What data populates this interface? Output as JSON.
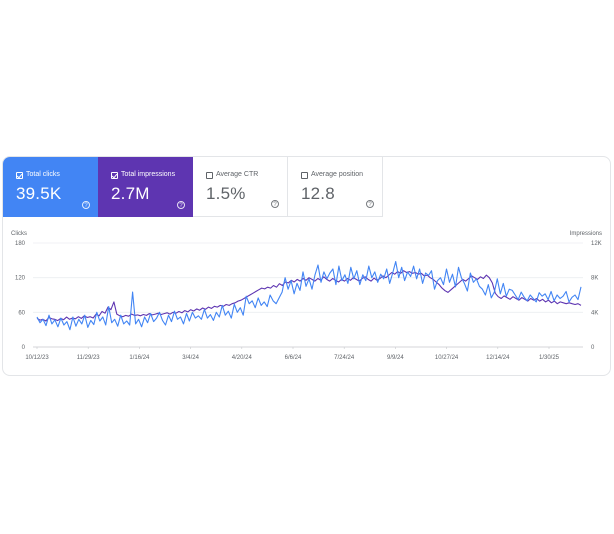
{
  "cards": [
    {
      "label": "Total clicks",
      "value": "39.5K",
      "checked": true,
      "color": "#4285f4"
    },
    {
      "label": "Total impressions",
      "value": "2.7M",
      "checked": true,
      "color": "#5e35b1"
    },
    {
      "label": "Average CTR",
      "value": "1.5%",
      "checked": false
    },
    {
      "label": "Average position",
      "value": "12.8",
      "checked": false
    }
  ],
  "help_glyph": "?",
  "chart_data": {
    "type": "line",
    "left_axis_label": "Clicks",
    "right_axis_label": "Impressions",
    "left_ticks": [
      "180",
      "120",
      "60",
      "0"
    ],
    "right_ticks": [
      "12K",
      "8K",
      "4K",
      "0"
    ],
    "x_ticks": [
      "10/12/23",
      "11/29/23",
      "1/16/24",
      "3/4/24",
      "4/20/24",
      "6/6/24",
      "7/24/24",
      "9/9/24",
      "10/27/24",
      "12/14/24",
      "1/30/25"
    ],
    "ylim_left": [
      0,
      180
    ],
    "ylim_right": [
      0,
      12000
    ],
    "series": [
      {
        "name": "Total clicks",
        "color": "#4285f4",
        "values": [
          52,
          42,
          48,
          37,
          55,
          40,
          47,
          35,
          50,
          38,
          44,
          30,
          52,
          36,
          48,
          40,
          55,
          34,
          46,
          39,
          60,
          45,
          52,
          38,
          70,
          42,
          48,
          36,
          55,
          40,
          45,
          38,
          95,
          40,
          48,
          35,
          52,
          42,
          58,
          44,
          50,
          60,
          46,
          38,
          55,
          44,
          62,
          48,
          52,
          40,
          58,
          45,
          60,
          50,
          54,
          48,
          65,
          50,
          56,
          46,
          60,
          52,
          72,
          55,
          62,
          50,
          74,
          60,
          68,
          55,
          88,
          75,
          80,
          68,
          85,
          72,
          78,
          70,
          90,
          80,
          75,
          85,
          95,
          120,
          100,
          115,
          92,
          110,
          98,
          130,
          105,
          118,
          100,
          125,
          142,
          112,
          130,
          118,
          128,
          135,
          108,
          140,
          115,
          125,
          110,
          138,
          118,
          132,
          108,
          125,
          115,
          140,
          120,
          130,
          112,
          126,
          118,
          135,
          110,
          128,
          148,
          120,
          138,
          115,
          130,
          122,
          140,
          118,
          135,
          110,
          128,
          124,
          132,
          100,
          115,
          120,
          108,
          135,
          112,
          126,
          104,
          138,
          120,
          110,
          97,
          128,
          112,
          118,
          105,
          100,
          90,
          108,
          85,
          95,
          118,
          92,
          110,
          88,
          100,
          98,
          90,
          82,
          95,
          86,
          80,
          90,
          84,
          78,
          94,
          88,
          92,
          82,
          96,
          80,
          90,
          84,
          88,
          96,
          78,
          86,
          90,
          82,
          104
        ],
        "note_partial": false
      },
      {
        "name": "Total impressions",
        "color": "#5e35b1",
        "values": [
          3300,
          3100,
          3200,
          3000,
          3400,
          3250,
          3200,
          3050,
          3300,
          3150,
          3450,
          3200,
          3350,
          3250,
          3500,
          3300,
          3600,
          3400,
          3500,
          3350,
          3800,
          3600,
          4100,
          3900,
          4600,
          4300,
          5200,
          3800,
          3600,
          3500,
          3650,
          3550,
          3800,
          3650,
          3700,
          3600,
          3750,
          3650,
          3850,
          3700,
          3800,
          3900,
          3750,
          3850,
          3950,
          3800,
          4000,
          3900,
          4100,
          3950,
          4200,
          4050,
          4300,
          4150,
          4400,
          4250,
          4500,
          4350,
          4600,
          4450,
          4700,
          4600,
          4800,
          4700,
          4900,
          4800,
          5000,
          5100,
          5300,
          5400,
          5600,
          5800,
          6000,
          6200,
          6400,
          6600,
          6800,
          6700,
          6900,
          6800,
          7100,
          6900,
          7300,
          7100,
          7500,
          7400,
          7700,
          7500,
          7800,
          7600,
          7900,
          7700,
          8000,
          7800,
          7600,
          7900,
          7700,
          8100,
          7800,
          7600,
          7900,
          7700,
          7500,
          7800,
          7600,
          7900,
          7700,
          8000,
          7800,
          7600,
          7900,
          8100,
          7800,
          7600,
          7950,
          7700,
          7900,
          8200,
          8000,
          8300,
          8600,
          8400,
          8700,
          8500,
          8800,
          8600,
          8700,
          8500,
          8600,
          8400,
          8500,
          8200,
          8300,
          8000,
          7800,
          7500,
          7200,
          6800,
          6500,
          6300,
          6600,
          6900,
          7200,
          7500,
          7800,
          7600,
          7900,
          8200,
          8000,
          7800,
          8100,
          7900,
          8300,
          8000,
          7400,
          6200,
          5800,
          5600,
          5900,
          5700,
          5500,
          5800,
          5600,
          5400,
          5700,
          5500,
          5300,
          5600,
          5400,
          5600,
          5300,
          5500,
          5200,
          5400,
          5100,
          5300,
          5000,
          5200,
          5100,
          5000,
          5100,
          5000,
          4900,
          5000,
          4800
        ]
      }
    ]
  }
}
